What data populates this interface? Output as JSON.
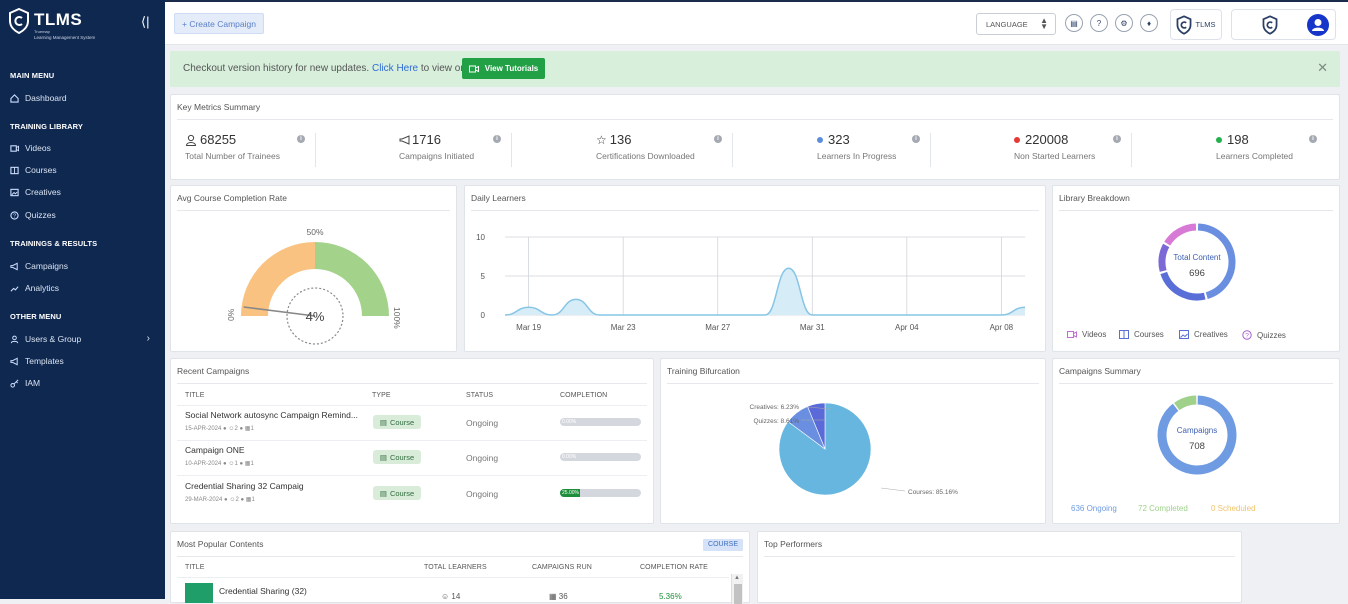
{
  "brand": {
    "name": "TLMS",
    "tag1": "Truemap",
    "tag2": "Learning Management System"
  },
  "sidebar": {
    "main_menu": "MAIN MENU",
    "dashboard": "Dashboard",
    "training_library": "TRAINING LIBRARY",
    "videos": "Videos",
    "courses": "Courses",
    "creatives": "Creatives",
    "quizzes": "Quizzes",
    "trainings_results": "TRAININGS & RESULTS",
    "campaigns": "Campaigns",
    "analytics": "Analytics",
    "other_menu": "OTHER MENU",
    "users_group": "Users & Group",
    "templates": "Templates",
    "iam": "IAM"
  },
  "topbar": {
    "create_campaign": "+ Create Campaign",
    "language": "LANGUAGE",
    "tlms_label": "TLMS"
  },
  "banner": {
    "text": "Checkout version history for new updates.",
    "link": "Click Here",
    "text2": "to view or",
    "tutorials": "View Tutorials"
  },
  "metrics": {
    "title": "Key Metrics Summary",
    "items": [
      {
        "value": "68255",
        "label": "Total Number of Trainees"
      },
      {
        "value": "1716",
        "label": "Campaigns Initiated"
      },
      {
        "value": "136",
        "label": "Certifications Downloaded"
      },
      {
        "value": "323",
        "label": "Learners In Progress",
        "color": "#5b8fdb"
      },
      {
        "value": "220008",
        "label": "Non Started Learners",
        "color": "#e53935"
      },
      {
        "value": "198",
        "label": "Learners Completed",
        "color": "#22b14c"
      }
    ]
  },
  "gauge": {
    "title": "Avg Course Completion Rate",
    "value_label": "4%",
    "value": 4,
    "min_label": "0%",
    "mid_label": "50%",
    "max_label": "100%"
  },
  "daily": {
    "title": "Daily Learners"
  },
  "chart_data": {
    "type": "area",
    "title": "Daily Learners",
    "x": [
      "Mar 18",
      "Mar 19",
      "Mar 20",
      "Mar 21",
      "Mar 22",
      "Mar 23",
      "Mar 24",
      "Mar 25",
      "Mar 26",
      "Mar 27",
      "Mar 28",
      "Mar 29",
      "Mar 30",
      "Mar 31",
      "Apr 01",
      "Apr 02",
      "Apr 03",
      "Apr 04",
      "Apr 05",
      "Apr 06",
      "Apr 07",
      "Apr 08",
      "Apr 09"
    ],
    "values": [
      0,
      1,
      0,
      2,
      0,
      0,
      0,
      0,
      0,
      0,
      0,
      0,
      6,
      0,
      0,
      0,
      0,
      0,
      0,
      0,
      0,
      0,
      1
    ],
    "tick_labels": [
      "Mar 19",
      "Mar 23",
      "Mar 27",
      "Mar 31",
      "Apr 04",
      "Apr 08"
    ],
    "yticks": [
      "0",
      "5",
      "10"
    ],
    "ylim": [
      0,
      10
    ]
  },
  "library": {
    "title": "Library Breakdown",
    "center_label": "Total Content",
    "total": "696",
    "segments": [
      {
        "name": "Videos",
        "value": 320,
        "color": "#6b8fe0"
      },
      {
        "name": "Courses",
        "value": 170,
        "color": "#5a6ed8"
      },
      {
        "name": "Creatives",
        "value": 90,
        "color": "#7d69d6"
      },
      {
        "name": "Quizzes",
        "value": 116,
        "color": "#d77ad6"
      }
    ],
    "legend": [
      "Videos",
      "Courses",
      "Creatives",
      "Quizzes"
    ]
  },
  "recent": {
    "title": "Recent Campaigns",
    "headers": [
      "TITLE",
      "TYPE",
      "STATUS",
      "COMPLETION"
    ],
    "rows": [
      {
        "title": "Social Network autosync Campaign Remind...",
        "date": "15-APR-2024",
        "m1": "2",
        "m2": "1",
        "type": "Course",
        "status": "Ongoing",
        "pct_label": "0.00%",
        "pct": 0
      },
      {
        "title": "Campaign ONE",
        "date": "10-APR-2024",
        "m1": "1",
        "m2": "1",
        "type": "Course",
        "status": "Ongoing",
        "pct_label": "0.00%",
        "pct": 0
      },
      {
        "title": "Credential Sharing 32 Campaig",
        "date": "29-MAR-2024",
        "m1": "2",
        "m2": "1",
        "type": "Course",
        "status": "Ongoing",
        "pct_label": "25.00%",
        "pct": 25
      }
    ]
  },
  "bifurcation": {
    "title": "Training Bifurcation",
    "slices": [
      {
        "label": "Courses: 85.16%",
        "value": 85.16,
        "color": "#66b6e0"
      },
      {
        "label": "Creatives: 6.23%",
        "value": 6.23,
        "color": "#5a6ad8"
      },
      {
        "label": "Quizzes: 8.61%",
        "value": 8.61,
        "color": "#6a8fe0"
      }
    ]
  },
  "summary": {
    "title": "Campaigns Summary",
    "center_label": "Campaigns",
    "total": "708",
    "ongoing_label": "636 Ongoing",
    "completed_label": "72 Completed",
    "scheduled_label": "0 Scheduled",
    "ongoing": 636,
    "completed": 72,
    "scheduled": 0,
    "colors": {
      "ongoing": "#6f9be3",
      "completed": "#9fd18b",
      "scheduled": "#f0c36a"
    }
  },
  "popular": {
    "title": "Most Popular Contents",
    "tag": "COURSE",
    "headers": [
      "TITLE",
      "TOTAL LEARNERS",
      "CAMPAIGNS RUN",
      "COMPLETION RATE"
    ],
    "row": {
      "title": "Credential Sharing (32)",
      "learners": "14",
      "campaigns": "36",
      "rate": "5.36%"
    }
  },
  "performers": {
    "title": "Top Performers"
  }
}
